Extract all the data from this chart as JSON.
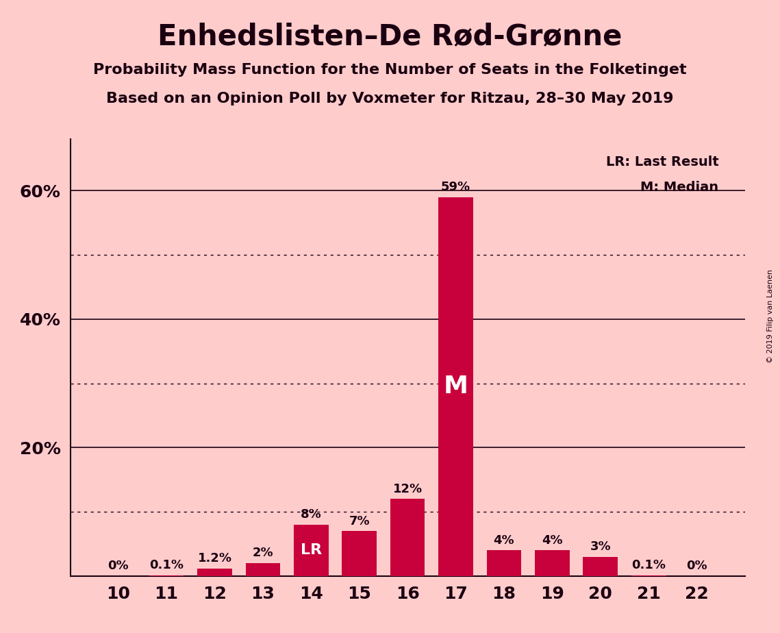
{
  "title": "Enhedslisten–De Rød-Grønne",
  "subtitle1": "Probability Mass Function for the Number of Seats in the Folketinget",
  "subtitle2": "Based on an Opinion Poll by Voxmeter for Ritzau, 28–30 May 2019",
  "copyright": "© 2019 Filip van Laenen",
  "categories": [
    10,
    11,
    12,
    13,
    14,
    15,
    16,
    17,
    18,
    19,
    20,
    21,
    22
  ],
  "values": [
    0.0,
    0.1,
    1.2,
    2.0,
    8.0,
    7.0,
    12.0,
    59.0,
    4.0,
    4.0,
    3.0,
    0.1,
    0.0
  ],
  "labels": [
    "0%",
    "0.1%",
    "1.2%",
    "2%",
    "8%",
    "7%",
    "12%",
    "59%",
    "4%",
    "4%",
    "3%",
    "0.1%",
    "0%"
  ],
  "bar_color": "#C8003C",
  "background_color": "#FFCCCC",
  "text_color": "#1a0010",
  "lr_bar": 14,
  "median_bar": 17,
  "lr_label": "LR: Last Result",
  "median_label": "M: Median",
  "median_marker": "M",
  "lr_marker": "LR",
  "ytick_labeled": [
    20,
    40,
    60
  ],
  "ytick_dotted": [
    10,
    30,
    50
  ],
  "ylim": [
    0,
    68
  ],
  "figsize": [
    11.39,
    9.24
  ],
  "dpi": 100
}
